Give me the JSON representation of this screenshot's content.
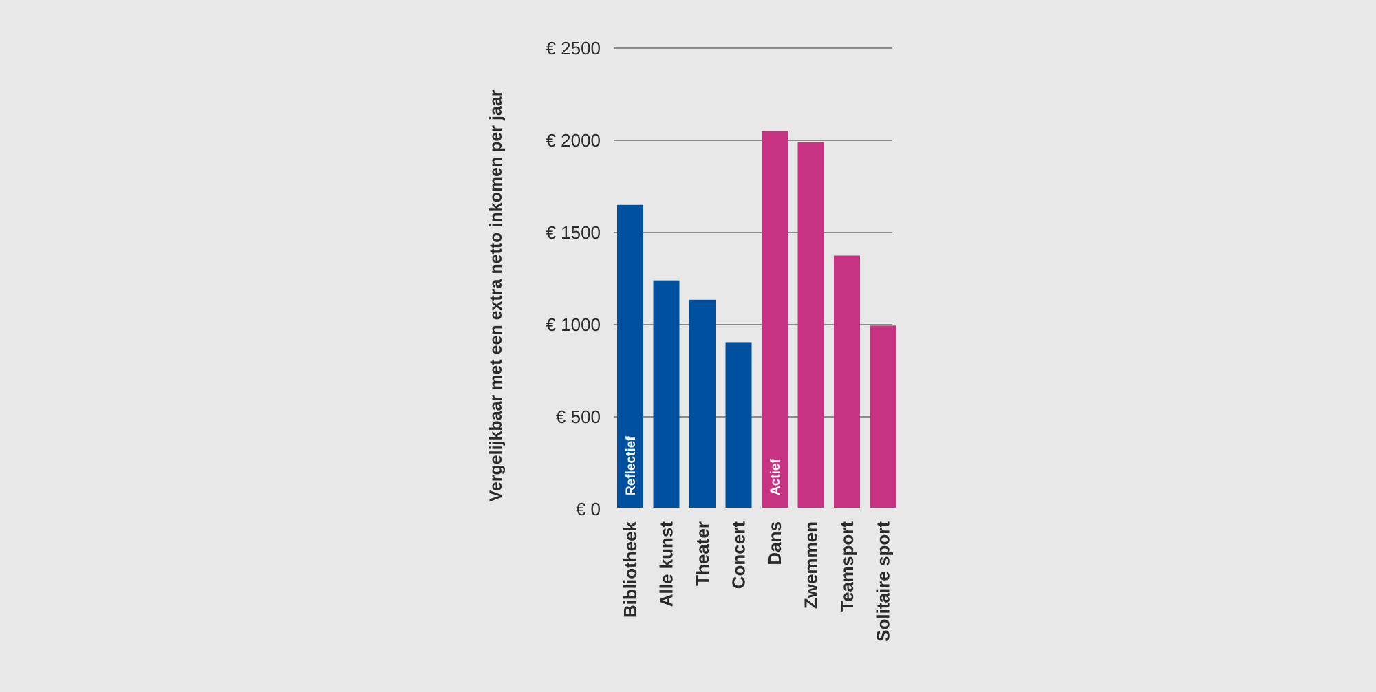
{
  "chart_data": {
    "type": "bar",
    "title": "",
    "xlabel": "",
    "ylabel": "Vergelijkbaar met een extra netto inkomen per jaar",
    "ylim": [
      0,
      2500
    ],
    "yticks": [
      0,
      500,
      1000,
      1500,
      2000,
      2500
    ],
    "ytick_labels": [
      "€ 0",
      "€ 500",
      "€ 1000",
      "€ 1500",
      "€ 2000",
      "€ 2500"
    ],
    "grid": true,
    "categories": [
      "Bibliotheek",
      "Alle kunst",
      "Theater",
      "Concert",
      "Dans",
      "Zwemmen",
      "Teamsport",
      "Solitaire sport"
    ],
    "values": [
      1650,
      1240,
      1135,
      905,
      2050,
      1990,
      1375,
      995
    ],
    "groups": [
      {
        "label": "Reflectief",
        "color": "#0050a0",
        "indices": [
          0,
          1,
          2,
          3
        ]
      },
      {
        "label": "Actief",
        "color": "#c73282",
        "indices": [
          4,
          5,
          6,
          7
        ]
      }
    ]
  }
}
